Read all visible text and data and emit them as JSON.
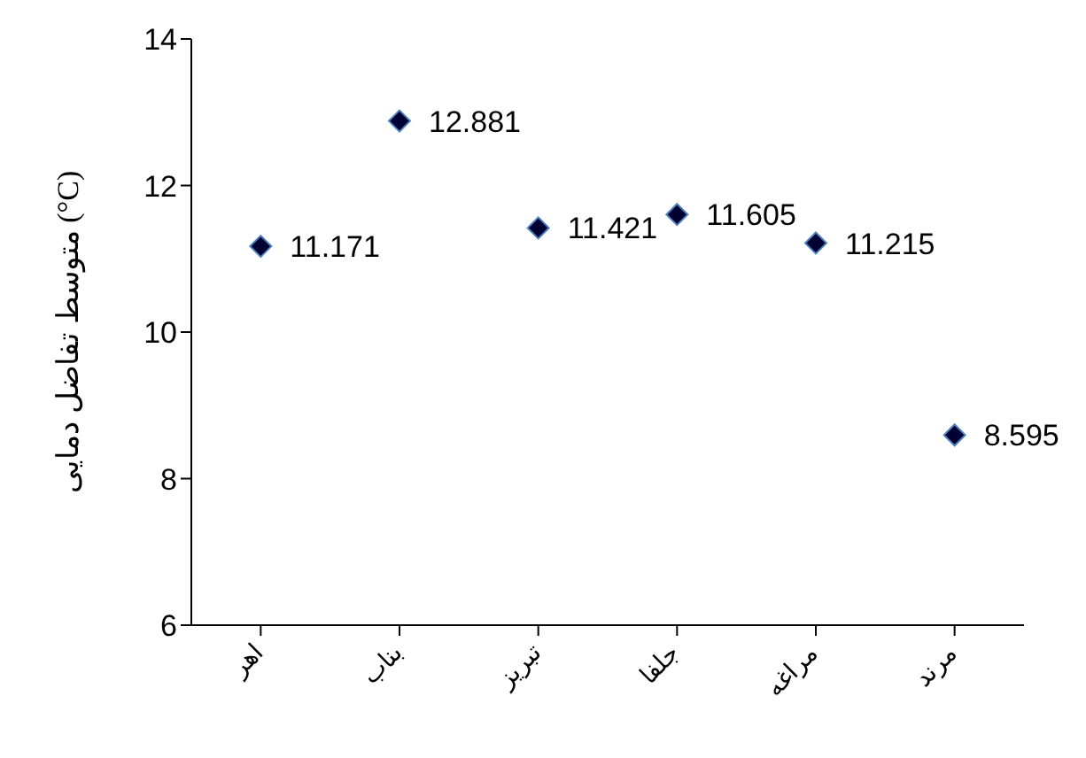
{
  "chart_data": {
    "type": "scatter",
    "ylabel": "متوسط تفاضل دمایی (°C)",
    "categories": [
      "اهر",
      "بناب",
      "تبریز",
      "جلفا",
      "مراغه",
      "مرند"
    ],
    "values": [
      11.171,
      12.881,
      11.421,
      11.605,
      11.215,
      8.595
    ],
    "color": "#000033",
    "marker": "diamond",
    "data_labels": true,
    "ylim": [
      6,
      14
    ],
    "yticks": [
      6,
      8,
      10,
      12,
      14
    ],
    "grid": false,
    "legend": false
  }
}
